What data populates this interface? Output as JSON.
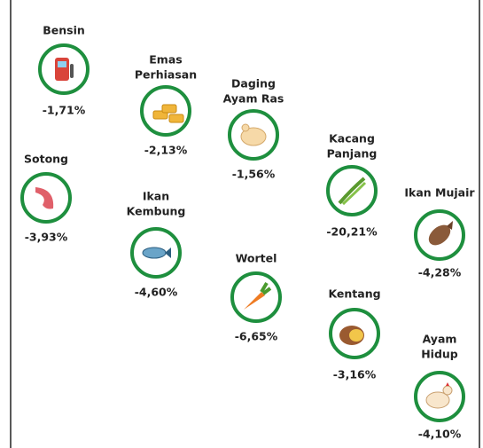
{
  "items": [
    {
      "label_lines": [
        "Bensin"
      ],
      "change": "-1,71%"
    },
    {
      "label_lines": [
        "Emas",
        "Perhiasan"
      ],
      "change": "-2,13%"
    },
    {
      "label_lines": [
        "Daging",
        "Ayam Ras"
      ],
      "change": "-1,56%"
    },
    {
      "label_lines": [
        "Kacang",
        "Panjang"
      ],
      "change": "-20,21%"
    },
    {
      "label_lines": [
        "Ikan Mujair"
      ],
      "change": "-4,28%"
    },
    {
      "label_lines": [
        "Sotong"
      ],
      "change": "-3,93%"
    },
    {
      "label_lines": [
        "Ikan",
        "Kembung"
      ],
      "change": "-4,60%"
    },
    {
      "label_lines": [
        "Wortel"
      ],
      "change": "-6,65%"
    },
    {
      "label_lines": [
        "Kentang"
      ],
      "change": "-3,16%"
    },
    {
      "label_lines": [
        "Ayam",
        "Hidup"
      ],
      "change": "-4,10%"
    }
  ]
}
